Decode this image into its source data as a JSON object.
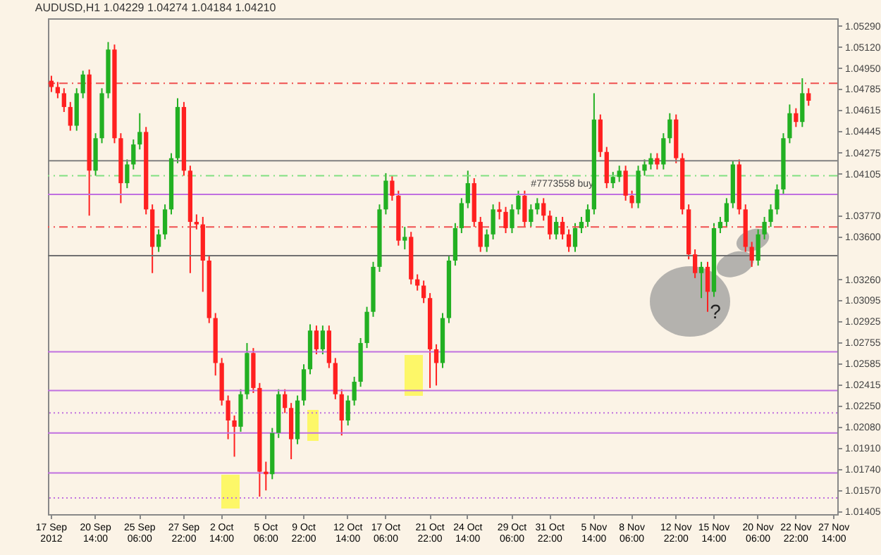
{
  "chart_data": {
    "type": "candlestick",
    "title": "AUDUSD,H1  1.04229 1.04274 1.04184 1.04210",
    "categories": [
      "17 Sep 2012",
      null,
      null,
      null,
      null,
      null,
      null,
      "20 Sep 14:00",
      null,
      null,
      null,
      null,
      null,
      null,
      "25 Sep 06:00",
      null,
      null,
      null,
      null,
      null,
      null,
      "27 Sep 22:00",
      null,
      null,
      null,
      null,
      null,
      "2 Oct 14:00",
      null,
      null,
      null,
      null,
      null,
      null,
      "5 Oct 06:00",
      null,
      null,
      null,
      null,
      null,
      "9 Oct 22:00",
      null,
      null,
      null,
      null,
      null,
      null,
      "12 Oct 14:00",
      null,
      null,
      null,
      null,
      null,
      "17 Oct 06:00",
      null,
      null,
      null,
      null,
      null,
      null,
      "21 Oct 22:00",
      null,
      null,
      null,
      null,
      null,
      "24 Oct 14:00",
      null,
      null,
      null,
      null,
      null,
      null,
      "29 Oct 06:00",
      null,
      null,
      null,
      null,
      null,
      "31 Oct 22:00",
      null,
      null,
      null,
      null,
      null,
      null,
      "5 Nov 14:00",
      null,
      null,
      null,
      null,
      null,
      "8 Nov 06:00",
      null,
      null,
      null,
      null,
      null,
      null,
      "12 Nov 22:00",
      null,
      null,
      null,
      null,
      null,
      "15 Nov 14:00",
      null,
      null,
      null,
      null,
      null,
      null,
      "20 Nov 06:00",
      null,
      null,
      null,
      null,
      null,
      "22 Nov 22:00",
      null,
      null,
      null,
      null,
      null,
      "27 Nov 14:00"
    ],
    "ohlc": [
      [
        1.0485,
        1.0489,
        1.0476,
        1.048
      ],
      [
        1.048,
        1.0484,
        1.0471,
        1.0475
      ],
      [
        1.0475,
        1.0479,
        1.046,
        1.0464
      ],
      [
        1.0464,
        1.0468,
        1.0445,
        1.0449
      ],
      [
        1.0449,
        1.0479,
        1.0445,
        1.0475
      ],
      [
        1.0475,
        1.0493,
        1.0471,
        1.049
      ],
      [
        1.049,
        1.0494,
        1.0377,
        1.0413
      ],
      [
        1.0413,
        1.0443,
        1.0409,
        1.0439
      ],
      [
        1.0439,
        1.0479,
        1.0435,
        1.0475
      ],
      [
        1.0475,
        1.0516,
        1.0471,
        1.051
      ],
      [
        1.051,
        1.0514,
        1.0435,
        1.0439
      ],
      [
        1.0439,
        1.0443,
        1.0387,
        1.0403
      ],
      [
        1.0403,
        1.0422,
        1.0399,
        1.0418
      ],
      [
        1.0418,
        1.0438,
        1.0414,
        1.0434
      ],
      [
        1.0434,
        1.0459,
        1.043,
        1.0444
      ],
      [
        1.0444,
        1.0448,
        1.0378,
        1.0382
      ],
      [
        1.0382,
        1.0386,
        1.0331,
        1.0352
      ],
      [
        1.0352,
        1.0366,
        1.0348,
        1.0362
      ],
      [
        1.0362,
        1.0386,
        1.0358,
        1.0382
      ],
      [
        1.0382,
        1.0427,
        1.0378,
        1.0423
      ],
      [
        1.0423,
        1.0471,
        1.0419,
        1.0464
      ],
      [
        1.0464,
        1.0468,
        1.0409,
        1.0413
      ],
      [
        1.0413,
        1.0417,
        1.0331,
        1.0372
      ],
      [
        1.0372,
        1.0378,
        1.0366,
        1.037
      ],
      [
        1.037,
        1.0376,
        1.0316,
        1.0341
      ],
      [
        1.0341,
        1.0345,
        1.0291,
        1.0295
      ],
      [
        1.0295,
        1.0299,
        1.0249,
        1.0259
      ],
      [
        1.0259,
        1.0263,
        1.0225,
        1.0229
      ],
      [
        1.0229,
        1.0233,
        1.0198,
        1.0213
      ],
      [
        1.0213,
        1.0217,
        1.0184,
        1.0208
      ],
      [
        1.0208,
        1.0238,
        1.0204,
        1.0234
      ],
      [
        1.0234,
        1.0275,
        1.023,
        1.0267
      ],
      [
        1.0267,
        1.0271,
        1.0235,
        1.0239
      ],
      [
        1.0239,
        1.0243,
        1.0152,
        1.0172
      ],
      [
        1.0172,
        1.018,
        1.0157,
        1.017
      ],
      [
        1.017,
        1.0207,
        1.0166,
        1.0203
      ],
      [
        1.0203,
        1.0238,
        1.0199,
        1.0234
      ],
      [
        1.0234,
        1.0238,
        1.0219,
        1.0223
      ],
      [
        1.0223,
        1.0227,
        1.0182,
        1.0198
      ],
      [
        1.0198,
        1.0233,
        1.0194,
        1.0229
      ],
      [
        1.0229,
        1.0258,
        1.0225,
        1.0254
      ],
      [
        1.0254,
        1.029,
        1.025,
        1.0285
      ],
      [
        1.0285,
        1.0289,
        1.0266,
        1.027
      ],
      [
        1.027,
        1.0289,
        1.0266,
        1.0285
      ],
      [
        1.0285,
        1.0289,
        1.0255,
        1.0259
      ],
      [
        1.0259,
        1.0263,
        1.023,
        1.0234
      ],
      [
        1.0234,
        1.0238,
        1.0201,
        1.0213
      ],
      [
        1.0213,
        1.0233,
        1.0209,
        1.0229
      ],
      [
        1.0229,
        1.0248,
        1.0225,
        1.0244
      ],
      [
        1.0244,
        1.0279,
        1.024,
        1.0275
      ],
      [
        1.0275,
        1.0304,
        1.0271,
        1.03
      ],
      [
        1.03,
        1.034,
        1.0296,
        1.0336
      ],
      [
        1.0336,
        1.0386,
        1.0332,
        1.0382
      ],
      [
        1.0382,
        1.0411,
        1.0378,
        1.0405
      ],
      [
        1.0405,
        1.0409,
        1.0389,
        1.0393
      ],
      [
        1.0393,
        1.0397,
        1.0353,
        1.0357
      ],
      [
        1.0357,
        1.0368,
        1.035,
        1.036
      ],
      [
        1.036,
        1.0364,
        1.0322,
        1.0326
      ],
      [
        1.0326,
        1.033,
        1.0317,
        1.0321
      ],
      [
        1.0321,
        1.0325,
        1.0307,
        1.0311
      ],
      [
        1.0311,
        1.0315,
        1.0239,
        1.027
      ],
      [
        1.027,
        1.0274,
        1.0241,
        1.0259
      ],
      [
        1.0259,
        1.0299,
        1.0255,
        1.0295
      ],
      [
        1.0295,
        1.0345,
        1.0291,
        1.0341
      ],
      [
        1.0341,
        1.0371,
        1.0337,
        1.0367
      ],
      [
        1.0367,
        1.0391,
        1.0363,
        1.0387
      ],
      [
        1.0387,
        1.0413,
        1.0383,
        1.0403
      ],
      [
        1.0403,
        1.0407,
        1.0368,
        1.0372
      ],
      [
        1.0372,
        1.0376,
        1.0348,
        1.0352
      ],
      [
        1.0352,
        1.0366,
        1.0348,
        1.0362
      ],
      [
        1.0362,
        1.0386,
        1.0358,
        1.0382
      ],
      [
        1.0382,
        1.0388,
        1.0374,
        1.038
      ],
      [
        1.038,
        1.0384,
        1.0363,
        1.0367
      ],
      [
        1.0367,
        1.0386,
        1.0363,
        1.0382
      ],
      [
        1.0382,
        1.0397,
        1.0378,
        1.0393
      ],
      [
        1.0393,
        1.0397,
        1.0368,
        1.0372
      ],
      [
        1.0372,
        1.0386,
        1.0368,
        1.0382
      ],
      [
        1.0382,
        1.0391,
        1.0378,
        1.0387
      ],
      [
        1.0387,
        1.0391,
        1.0373,
        1.0377
      ],
      [
        1.0377,
        1.0381,
        1.0358,
        1.0362
      ],
      [
        1.0362,
        1.0376,
        1.0358,
        1.0372
      ],
      [
        1.0372,
        1.0376,
        1.0358,
        1.0362
      ],
      [
        1.0362,
        1.0366,
        1.0348,
        1.0352
      ],
      [
        1.0352,
        1.0371,
        1.0348,
        1.0367
      ],
      [
        1.0367,
        1.0376,
        1.0363,
        1.0372
      ],
      [
        1.0372,
        1.0386,
        1.0368,
        1.0382
      ],
      [
        1.0382,
        1.0475,
        1.0378,
        1.0454
      ],
      [
        1.0454,
        1.0458,
        1.0424,
        1.0428
      ],
      [
        1.0428,
        1.0432,
        1.0399,
        1.0403
      ],
      [
        1.0403,
        1.0412,
        1.0399,
        1.0408
      ],
      [
        1.0408,
        1.0417,
        1.0404,
        1.0413
      ],
      [
        1.0413,
        1.0417,
        1.0389,
        1.0393
      ],
      [
        1.0393,
        1.0397,
        1.0383,
        1.0387
      ],
      [
        1.0387,
        1.0417,
        1.0383,
        1.0413
      ],
      [
        1.0413,
        1.0422,
        1.0409,
        1.0418
      ],
      [
        1.0418,
        1.0427,
        1.0414,
        1.0423
      ],
      [
        1.0423,
        1.0427,
        1.0414,
        1.0418
      ],
      [
        1.0418,
        1.0443,
        1.0414,
        1.0439
      ],
      [
        1.0439,
        1.0459,
        1.0435,
        1.0454
      ],
      [
        1.0454,
        1.0458,
        1.0419,
        1.0423
      ],
      [
        1.0423,
        1.0427,
        1.0378,
        1.0382
      ],
      [
        1.0382,
        1.0386,
        1.0342,
        1.0346
      ],
      [
        1.0346,
        1.035,
        1.0327,
        1.0331
      ],
      [
        1.0331,
        1.034,
        1.0311,
        1.0336
      ],
      [
        1.0336,
        1.034,
        1.03,
        1.0316
      ],
      [
        1.0316,
        1.0371,
        1.0312,
        1.0367
      ],
      [
        1.0367,
        1.0376,
        1.0363,
        1.0372
      ],
      [
        1.0372,
        1.0391,
        1.0368,
        1.0387
      ],
      [
        1.0387,
        1.0421,
        1.0383,
        1.0418
      ],
      [
        1.0418,
        1.0422,
        1.0378,
        1.0382
      ],
      [
        1.0382,
        1.0386,
        1.0348,
        1.0352
      ],
      [
        1.0352,
        1.0356,
        1.0336,
        1.0341
      ],
      [
        1.0341,
        1.0366,
        1.0337,
        1.0362
      ],
      [
        1.0362,
        1.0376,
        1.0358,
        1.0372
      ],
      [
        1.0372,
        1.0386,
        1.0368,
        1.0382
      ],
      [
        1.0382,
        1.0402,
        1.0378,
        1.0398
      ],
      [
        1.0398,
        1.0443,
        1.0394,
        1.0439
      ],
      [
        1.0439,
        1.0466,
        1.0435,
        1.0459
      ],
      [
        1.0459,
        1.0463,
        1.0448,
        1.0452
      ],
      [
        1.0452,
        1.0487,
        1.0448,
        1.0475
      ],
      [
        1.0475,
        1.0479,
        1.0465,
        1.0469
      ],
      null,
      null,
      null,
      null
    ],
    "ylim": [
      1.0138,
      1.0535
    ],
    "yticks": [
      {
        "value": 1.0529,
        "label": "1.05290"
      },
      {
        "value": 1.0512,
        "label": "1.05120"
      },
      {
        "value": 1.0495,
        "label": "1.04950"
      },
      1.04785,
      1.04615,
      1.04445,
      1.04275,
      1.04105,
      {
        "value": 1.0377,
        "label": "1.03770"
      },
      {
        "value": 1.036,
        "label": "1.03600"
      },
      {
        "value": 1.0326,
        "label": "1.03260"
      },
      1.03095,
      1.02925,
      1.02755,
      1.02585,
      1.02415,
      {
        "value": 1.0225,
        "label": "1.02250"
      },
      {
        "value": 1.0208,
        "label": "1.02080"
      },
      {
        "value": 1.0191,
        "label": "1.01910"
      },
      {
        "value": 1.0174,
        "label": "1.01740"
      },
      {
        "value": 1.0157,
        "label": "1.01570"
      },
      1.01405
    ],
    "ref_lines": [
      {
        "axis": "y",
        "value": 1.0483,
        "color": "#f05050",
        "line_style": "dashed"
      },
      {
        "axis": "y",
        "value": 1.0421,
        "color": "#808080",
        "line_style": "solid"
      },
      {
        "axis": "y",
        "value": 1.0409,
        "color": "#80e080",
        "line_style": "dashed",
        "label": "#7773558 buy"
      },
      {
        "axis": "y",
        "value": 1.0394,
        "color": "#c070e0",
        "line_style": "solid"
      },
      {
        "axis": "y",
        "value": 1.0368,
        "color": "#f05050",
        "line_style": "dashed"
      },
      {
        "axis": "y",
        "value": 1.0345,
        "color": "#707070",
        "line_style": "solid"
      },
      {
        "axis": "y",
        "value": 1.0268,
        "color": "#c070e0",
        "line_style": "solid"
      },
      {
        "axis": "y",
        "value": 1.0237,
        "color": "#c070e0",
        "line_style": "solid"
      },
      {
        "axis": "y",
        "value": 1.0219,
        "color": "#c070e0",
        "line_style": "dotted"
      },
      {
        "axis": "y",
        "value": 1.0203,
        "color": "#c070e0",
        "line_style": "solid"
      },
      {
        "axis": "y",
        "value": 1.0171,
        "color": "#c070e0",
        "line_style": "solid"
      },
      {
        "axis": "y",
        "value": 1.0151,
        "color": "#c070e0",
        "line_style": "dotted"
      }
    ],
    "annotations": [
      "?"
    ],
    "grid": false
  }
}
